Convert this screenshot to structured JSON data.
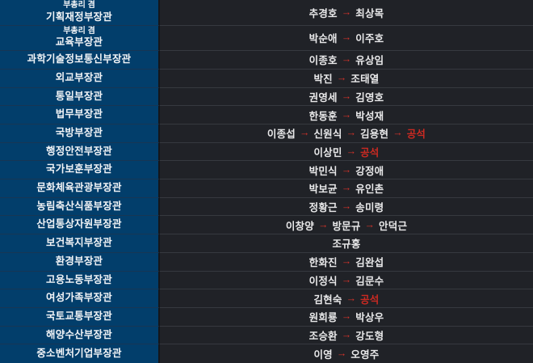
{
  "chart_data": {
    "type": "table",
    "description_labels": {
      "arrow": "→",
      "vacant_label": "공석"
    },
    "rows": [
      {
        "position_prefix": "부총리 겸",
        "position": "기획재정부장관",
        "succession": [
          "추경호",
          "최상목"
        ]
      },
      {
        "position_prefix": "부총리 겸",
        "position": "교육부장관",
        "succession": [
          "박순애",
          "이주호"
        ]
      },
      {
        "position": "과학기술정보통신부장관",
        "succession": [
          "이종호",
          "유상임"
        ]
      },
      {
        "position": "외교부장관",
        "succession": [
          "박진",
          "조태열"
        ]
      },
      {
        "position": "통일부장관",
        "succession": [
          "권영세",
          "김영호"
        ]
      },
      {
        "position": "법무부장관",
        "succession": [
          "한동훈",
          "박성재"
        ]
      },
      {
        "position": "국방부장관",
        "succession": [
          "이종섭",
          "신원식",
          "김용현",
          "공석"
        ]
      },
      {
        "position": "행정안전부장관",
        "succession": [
          "이상민",
          "공석"
        ]
      },
      {
        "position": "국가보훈부장관",
        "succession": [
          "박민식",
          "강정애"
        ]
      },
      {
        "position": "문화체육관광부장관",
        "succession": [
          "박보균",
          "유인촌"
        ]
      },
      {
        "position": "농림축산식품부장관",
        "succession": [
          "정황근",
          "송미령"
        ]
      },
      {
        "position": "산업통상자원부장관",
        "succession": [
          "이창양",
          "방문규",
          "안덕근"
        ]
      },
      {
        "position": "보건복지부장관",
        "succession": [
          "조규홍"
        ]
      },
      {
        "position": "환경부장관",
        "succession": [
          "한화진",
          "김완섭"
        ]
      },
      {
        "position": "고용노동부장관",
        "succession": [
          "이정식",
          "김문수"
        ]
      },
      {
        "position": "여성가족부장관",
        "succession": [
          "김현숙",
          "공석"
        ]
      },
      {
        "position": "국토교통부장관",
        "succession": [
          "원희룡",
          "박상우"
        ]
      },
      {
        "position": "해양수산부장관",
        "succession": [
          "조승환",
          "강도형"
        ]
      },
      {
        "position": "중소벤처기업부장관",
        "succession": [
          "이영",
          "오영주"
        ]
      }
    ]
  },
  "colors": {
    "ministry_cell_bg": "#023e6b",
    "ministry_cell_divider": "#173654",
    "right_cell_bg": "#202227",
    "right_cell_divider": "#36393f",
    "column_gap": "#14161b",
    "text_primary": "#e9e9ea",
    "ministry_text": "#f2f4f7",
    "arrow_red": "#d2332a",
    "vacant_red": "#cb2a22"
  }
}
